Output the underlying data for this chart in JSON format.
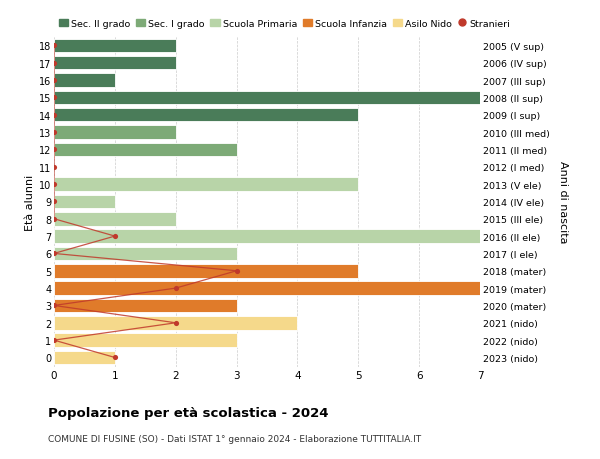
{
  "ages": [
    18,
    17,
    16,
    15,
    14,
    13,
    12,
    11,
    10,
    9,
    8,
    7,
    6,
    5,
    4,
    3,
    2,
    1,
    0
  ],
  "years": [
    "2005 (V sup)",
    "2006 (IV sup)",
    "2007 (III sup)",
    "2008 (II sup)",
    "2009 (I sup)",
    "2010 (III med)",
    "2011 (II med)",
    "2012 (I med)",
    "2013 (V ele)",
    "2014 (IV ele)",
    "2015 (III ele)",
    "2016 (II ele)",
    "2017 (I ele)",
    "2018 (mater)",
    "2019 (mater)",
    "2020 (mater)",
    "2021 (nido)",
    "2022 (nido)",
    "2023 (nido)"
  ],
  "bar_values": [
    2,
    2,
    1,
    7,
    5,
    2,
    3,
    0,
    5,
    1,
    2,
    7,
    3,
    5,
    7,
    3,
    4,
    3,
    1
  ],
  "bar_colors": [
    "#4a7c59",
    "#4a7c59",
    "#4a7c59",
    "#4a7c59",
    "#4a7c59",
    "#7daa77",
    "#7daa77",
    "#7daa77",
    "#b8d4a8",
    "#b8d4a8",
    "#b8d4a8",
    "#b8d4a8",
    "#b8d4a8",
    "#e07b2a",
    "#e07b2a",
    "#e07b2a",
    "#f5d98b",
    "#f5d98b",
    "#f5d98b"
  ],
  "stranieri_values": [
    0,
    0,
    0,
    0,
    0,
    0,
    0,
    0,
    0,
    0,
    0,
    1,
    0,
    3,
    2,
    0,
    2,
    0,
    1
  ],
  "title": "Popolazione per età scolastica - 2024",
  "subtitle": "COMUNE DI FUSINE (SO) - Dati ISTAT 1° gennaio 2024 - Elaborazione TUTTITALIA.IT",
  "ylabel": "Età alunni",
  "right_label": "Anni di nascita",
  "xlim": [
    0,
    7
  ],
  "xticks": [
    0,
    1,
    2,
    3,
    4,
    5,
    6,
    7
  ],
  "legend_labels": [
    "Sec. II grado",
    "Sec. I grado",
    "Scuola Primaria",
    "Scuola Infanzia",
    "Asilo Nido",
    "Stranieri"
  ],
  "legend_colors": [
    "#4a7c59",
    "#7daa77",
    "#b8d4a8",
    "#e07b2a",
    "#f5d98b",
    "#c0392b"
  ],
  "color_stranieri": "#c0392b",
  "bg_color": "#ffffff",
  "grid_color": "#cccccc"
}
